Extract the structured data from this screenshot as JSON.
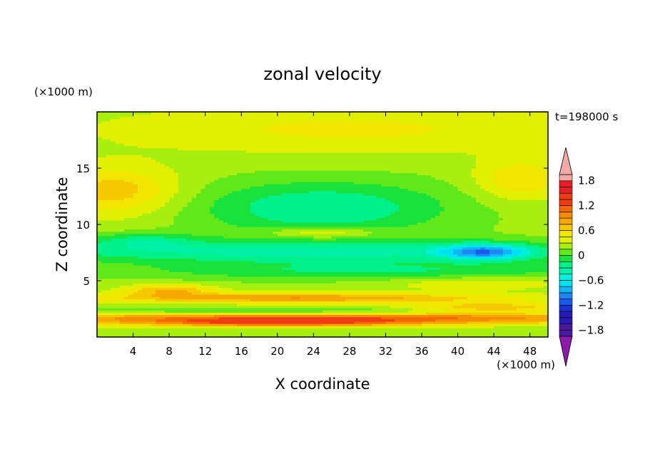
{
  "chart_data": {
    "type": "heatmap",
    "title": "zonal velocity",
    "xlabel": "X coordinate",
    "ylabel": "Z coordinate",
    "x_unit": "(×1000 m)",
    "y_unit": "(×1000 m)",
    "time_label": "t=198000 s",
    "xlim": [
      0,
      50
    ],
    "ylim": [
      0,
      20
    ],
    "x_ticks": [
      4,
      8,
      12,
      16,
      20,
      24,
      28,
      32,
      36,
      40,
      44,
      48
    ],
    "y_ticks": [
      5,
      10,
      15
    ],
    "colorbar": {
      "levels": [
        -2.1,
        -1.95,
        -1.8,
        -1.65,
        -1.5,
        -1.35,
        -1.2,
        -1.05,
        -0.9,
        -0.75,
        -0.6,
        -0.45,
        -0.3,
        -0.15,
        0,
        0.15,
        0.3,
        0.45,
        0.6,
        0.75,
        0.9,
        1.05,
        1.2,
        1.35,
        1.5,
        1.65,
        1.8,
        1.95,
        2.1
      ],
      "tick_labels": [
        "1.8",
        "1.2",
        "0.6",
        "0",
        "−0.6",
        "−1.2",
        "−1.8"
      ],
      "tick_values": [
        1.8,
        1.2,
        0.6,
        0,
        -0.6,
        -1.2,
        -1.8
      ],
      "range": [
        -1.95,
        1.95
      ]
    },
    "features": [
      {
        "name": "lower jet",
        "x_range": [
          0,
          50
        ],
        "z_range": [
          0.5,
          5.5
        ],
        "value": 0.8
      },
      {
        "name": "lower jet max",
        "x_range": [
          4,
          12
        ],
        "z_range": [
          3.8,
          4.6
        ],
        "value": 1.55
      },
      {
        "name": "lower jet max",
        "x_range": [
          38,
          46
        ],
        "z_range": [
          2.1,
          2.8
        ],
        "value": 1.35
      },
      {
        "name": "easterly band",
        "x_range": [
          0,
          50
        ],
        "z_range": [
          6.5,
          9.0
        ],
        "value": -0.5
      },
      {
        "name": "easterly core",
        "x_range": [
          39,
          48
        ],
        "z_range": [
          7.2,
          8.3
        ],
        "value": -1.3
      },
      {
        "name": "upper easterly",
        "x_range": [
          18,
          36
        ],
        "z_range": [
          10.5,
          14
        ],
        "value": -0.4
      },
      {
        "name": "upper westerly",
        "x_range": [
          0,
          8
        ],
        "z_range": [
          11,
          15
        ],
        "value": 0.55
      },
      {
        "name": "upper westerly",
        "x_range": [
          44,
          50
        ],
        "z_range": [
          11.5,
          15
        ],
        "value": 0.45
      }
    ]
  }
}
